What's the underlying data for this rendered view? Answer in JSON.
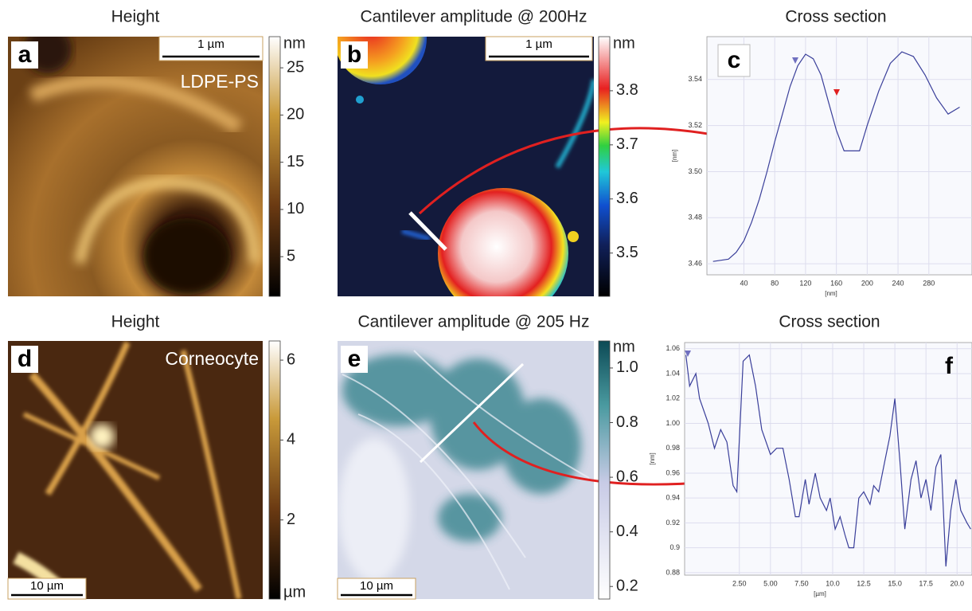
{
  "images": [
    {
      "title": "Height",
      "letter": "a",
      "unit": "nm",
      "scale_bar": "1 µm",
      "label": "LDPE-PS",
      "colorbar": {
        "lim": [
          0.8,
          28.3
        ],
        "ticks": [
          25,
          20,
          15,
          10,
          5
        ]
      }
    },
    {
      "title": "Cantilever amplitude @ 200Hz",
      "letter": "b",
      "unit": "nm",
      "scale_bar": "1 µm",
      "colorbar": {
        "lim": [
          3.42,
          3.9
        ],
        "ticks": [
          3.8,
          3.7,
          3.6,
          3.5
        ]
      }
    },
    {
      "title": "Height",
      "letter": "d",
      "unit": "µm",
      "scale_bar": "10 µm",
      "label": "Corneocyte",
      "colorbar": {
        "lim": [
          0.02,
          6.48
        ],
        "ticks": [
          6,
          4,
          2
        ]
      }
    },
    {
      "title": "Cantilever amplitude @ 205 Hz",
      "letter": "e",
      "unit": "nm",
      "scale_bar": "10 µm",
      "colorbar": {
        "lim": [
          0.154,
          1.099
        ],
        "ticks": [
          {
            "value": 1,
            "label": "1.0"
          },
          0.8,
          0.6,
          0.4,
          0.2
        ]
      }
    }
  ],
  "chart_data": [
    {
      "type": "line",
      "title": "Cross section",
      "letter": "c",
      "x_label": "[nm]",
      "y_label": "[nm]",
      "color": "#3a3f9a",
      "grid": true,
      "x": [
        0,
        20,
        30,
        40,
        50,
        60,
        70,
        80,
        90,
        100,
        110,
        120,
        130,
        140,
        150,
        160,
        170,
        190,
        200,
        215,
        230,
        245,
        260,
        275,
        290,
        305,
        320
      ],
      "values": [
        3.461,
        3.462,
        3.465,
        3.47,
        3.478,
        3.488,
        3.5,
        3.513,
        3.525,
        3.537,
        3.546,
        3.551,
        3.549,
        3.542,
        3.53,
        3.518,
        3.509,
        3.509,
        3.52,
        3.535,
        3.547,
        3.552,
        3.55,
        3.542,
        3.532,
        3.525,
        3.528
      ],
      "xlim": [
        -8,
        336
      ],
      "ylim": [
        3.4552,
        3.5586
      ],
      "xticks": [
        40,
        80,
        120,
        160,
        200,
        240,
        280
      ],
      "yticks": [
        3.54,
        3.52,
        {
          "value": 3.5,
          "label": "3.50"
        },
        3.48,
        3.46
      ]
    },
    {
      "type": "line",
      "title": "Cross section",
      "letter": "f",
      "x_label": "[µm]",
      "y_label": "[nm]",
      "color": "#3a3f9a",
      "grid": true,
      "x": [
        -1.8,
        -1.5,
        -1,
        -0.7,
        0,
        0.5,
        1,
        1.5,
        2,
        2.3,
        2.8,
        3.3,
        3.8,
        4.3,
        5,
        5.5,
        6,
        6.5,
        7,
        7.3,
        7.8,
        8.1,
        8.6,
        9,
        9.5,
        9.8,
        10.2,
        10.6,
        11,
        11.3,
        11.7,
        12.1,
        12.5,
        13,
        13.3,
        13.7,
        14.2,
        14.6,
        15,
        15.4,
        15.8,
        16.3,
        16.7,
        17.1,
        17.5,
        17.9,
        18.3,
        18.7,
        19.1,
        19.5,
        19.9,
        20.3,
        20.8,
        21.1
      ],
      "values": [
        1.055,
        1.03,
        1.04,
        1.02,
        1.0,
        0.98,
        0.995,
        0.985,
        0.95,
        0.945,
        1.05,
        1.055,
        1.03,
        0.995,
        0.975,
        0.98,
        0.98,
        0.955,
        0.925,
        0.925,
        0.955,
        0.935,
        0.96,
        0.94,
        0.93,
        0.94,
        0.915,
        0.925,
        0.91,
        0.9,
        0.9,
        0.94,
        0.945,
        0.935,
        0.95,
        0.945,
        0.97,
        0.99,
        1.02,
        0.97,
        0.915,
        0.955,
        0.97,
        0.94,
        0.955,
        0.93,
        0.965,
        0.975,
        0.885,
        0.93,
        0.955,
        0.93,
        0.92,
        0.915
      ],
      "xlim": [
        -1.9,
        21.2
      ],
      "ylim": [
        0.878,
        1.065
      ],
      "xticks": [
        {
          "value": 2.5,
          "label": "2.50"
        },
        {
          "value": 5,
          "label": "5.00"
        },
        {
          "value": 7.5,
          "label": "7.50"
        },
        {
          "value": 10,
          "label": "10.0"
        },
        12.5,
        {
          "value": 15,
          "label": "15.0"
        },
        17.5,
        {
          "value": 20,
          "label": "20.0"
        }
      ],
      "yticks": [
        1.06,
        1.04,
        1.02,
        {
          "value": 1,
          "label": "1.00"
        },
        0.98,
        0.96,
        0.94,
        0.92,
        0.9,
        0.88
      ]
    }
  ]
}
